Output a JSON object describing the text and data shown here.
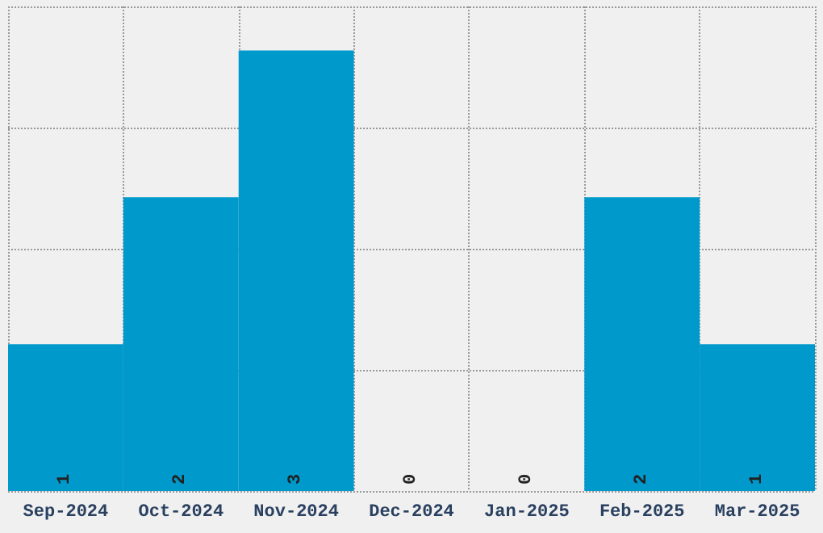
{
  "chart_data": {
    "type": "bar",
    "categories": [
      "Sep-2024",
      "Oct-2024",
      "Nov-2024",
      "Dec-2024",
      "Jan-2025",
      "Feb-2025",
      "Mar-2025"
    ],
    "values": [
      1,
      2,
      3,
      0,
      0,
      2,
      1
    ],
    "color": "#0099cc",
    "data_labels": true,
    "ylim": [
      0,
      3.3
    ],
    "yticks": [
      {
        "value": 0,
        "label": null
      },
      {
        "value": 0.825,
        "label": null
      },
      {
        "value": 1.65,
        "label": null
      },
      {
        "value": 2.475,
        "label": null
      },
      {
        "value": 3.3,
        "label": null
      }
    ],
    "grid": true,
    "tick_labels": "x"
  }
}
